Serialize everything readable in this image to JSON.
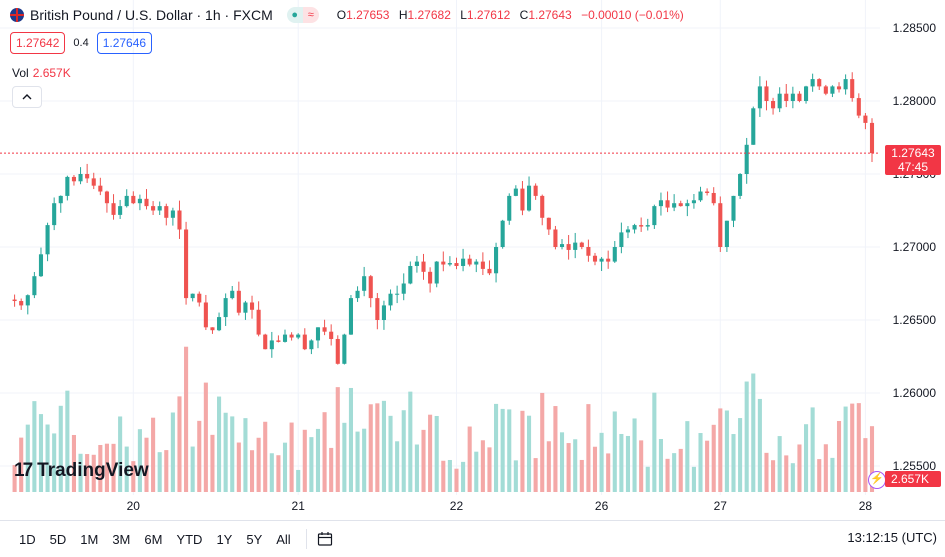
{
  "header": {
    "title": "British Pound / U.S. Dollar · 1h · FXCM",
    "ohlc": [
      {
        "k": "O",
        "v": "1.27653"
      },
      {
        "k": "H",
        "v": "1.27682"
      },
      {
        "k": "L",
        "v": "1.27612"
      },
      {
        "k": "C",
        "v": "1.27643"
      },
      {
        "k": "",
        "v": "−0.00010 (−0.01%)"
      }
    ]
  },
  "quotes": {
    "sell": "1.27642",
    "spread": "0.4",
    "buy": "1.27646"
  },
  "volume": {
    "label": "Vol",
    "value": "2.657K",
    "tag": "2.657K"
  },
  "price_tag": {
    "price": "1.27643",
    "countdown": "47:45"
  },
  "logo": {
    "text": "TradingView",
    "mark": "17"
  },
  "toolbar": {
    "timeframes": [
      "1D",
      "5D",
      "1M",
      "3M",
      "6M",
      "YTD",
      "1Y",
      "5Y",
      "All"
    ],
    "time": "13:12:15 (UTC)"
  },
  "colors": {
    "up": "#26a69a",
    "down": "#ef5350",
    "vol_up": "#a3dcd6",
    "vol_down": "#f4a8a7",
    "last_line": "#f23645"
  },
  "chart_data": {
    "type": "candlestick",
    "symbol": "GBPUSD",
    "interval": "1h",
    "y_ticks": [
      1.255,
      1.26,
      1.265,
      1.27,
      1.275,
      1.28,
      1.285
    ],
    "x_ticks": [
      "20",
      "21",
      "22",
      "26",
      "27",
      "28"
    ],
    "last_price": 1.27643,
    "series": [
      {
        "name": "price",
        "values": [
          1.2664,
          1.2663,
          1.266,
          1.2667,
          1.268,
          1.2695,
          1.2715,
          1.273,
          1.2735,
          1.2748,
          1.2745,
          1.275,
          1.2747,
          1.2742,
          1.2738,
          1.273,
          1.2722,
          1.2728,
          1.2735,
          1.273,
          1.2733,
          1.2728,
          1.2725,
          1.2728,
          1.272,
          1.2725,
          1.2712,
          1.2665,
          1.2668,
          1.2662,
          1.2645,
          1.2643,
          1.2652,
          1.2665,
          1.267,
          1.2655,
          1.2662,
          1.2657,
          1.264,
          1.263,
          1.2636,
          1.2635,
          1.264,
          1.2638,
          1.264,
          1.263,
          1.2636,
          1.2645,
          1.2642,
          1.2637,
          1.262,
          1.264,
          1.2665,
          1.267,
          1.268,
          1.2665,
          1.265,
          1.266,
          1.2668,
          1.2668,
          1.2675,
          1.2687,
          1.269,
          1.2683,
          1.2675,
          1.269,
          1.2688,
          1.2689,
          1.2687,
          1.2692,
          1.2688,
          1.269,
          1.2685,
          1.2682,
          1.27,
          1.2718,
          1.2735,
          1.274,
          1.2725,
          1.2742,
          1.2735,
          1.272,
          1.2712,
          1.27,
          1.2702,
          1.2698,
          1.2703,
          1.27,
          1.2694,
          1.269,
          1.2692,
          1.269,
          1.27,
          1.271,
          1.2712,
          1.2715,
          1.2714,
          1.2715,
          1.2728,
          1.2732,
          1.2727,
          1.273,
          1.2728,
          1.273,
          1.2732,
          1.2738,
          1.2737,
          1.273,
          1.27,
          1.2718,
          1.2735,
          1.275,
          1.277,
          1.2795,
          1.281,
          1.28,
          1.2795,
          1.2805,
          1.28,
          1.2805,
          1.28,
          1.281,
          1.2815,
          1.281,
          1.2805,
          1.281,
          1.2808,
          1.2815,
          1.2802,
          1.279,
          1.2785,
          1.27643
        ]
      }
    ],
    "volume_scale": "relative"
  }
}
